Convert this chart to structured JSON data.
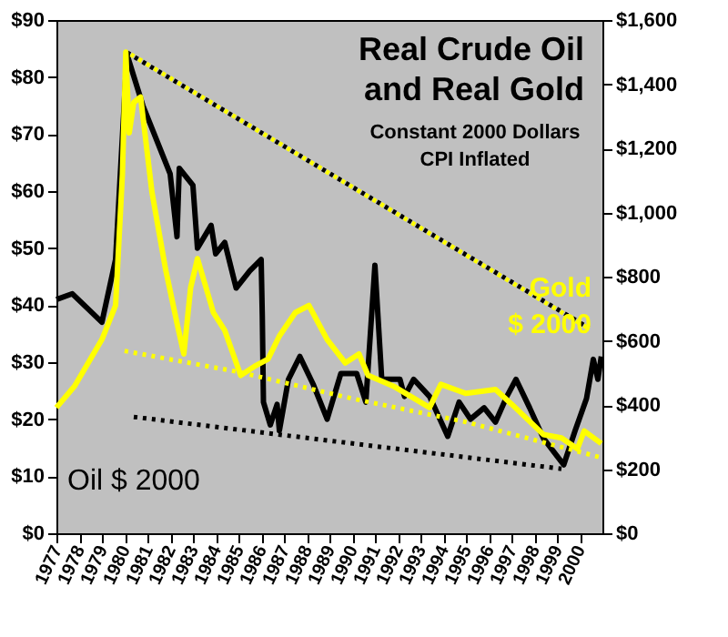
{
  "chart_data": {
    "type": "line",
    "title": "Real Crude Oil and Real Gold",
    "subtitle": "Constant 2000 Dollars CPI Inflated",
    "xlim": [
      1977,
      2001
    ],
    "xticks": [
      1977,
      1978,
      1979,
      1980,
      1981,
      1982,
      1983,
      1984,
      1985,
      1986,
      1987,
      1988,
      1989,
      1990,
      1991,
      1992,
      1993,
      1994,
      1995,
      1996,
      1997,
      1998,
      1999,
      2000
    ],
    "ylim": [
      0,
      90
    ],
    "yticks": [
      {
        "value": 0,
        "label": "$0"
      },
      {
        "value": 10,
        "label": "$10"
      },
      {
        "value": 20,
        "label": "$20"
      },
      {
        "value": 30,
        "label": "$30"
      },
      {
        "value": 40,
        "label": "$40"
      },
      {
        "value": 50,
        "label": "$50"
      },
      {
        "value": 60,
        "label": "$60"
      },
      {
        "value": 70,
        "label": "$70"
      },
      {
        "value": 80,
        "label": "$80"
      },
      {
        "value": 90,
        "label": "$90"
      }
    ],
    "y2lim": [
      0,
      1600
    ],
    "y2ticks": [
      {
        "value": 0,
        "label": "$0"
      },
      {
        "value": 200,
        "label": "$200"
      },
      {
        "value": 400,
        "label": "$400"
      },
      {
        "value": 600,
        "label": "$600"
      },
      {
        "value": 800,
        "label": "$800"
      },
      {
        "value": 1000,
        "label": "$1,000"
      },
      {
        "value": 1200,
        "label": "$1,200"
      },
      {
        "value": 1400,
        "label": "$1,400"
      },
      {
        "value": 1600,
        "label": "$1,600"
      }
    ],
    "marker": "none",
    "series": [
      {
        "name": "Oil $ 2000",
        "color": "#000000",
        "line_style": "solid",
        "x": [
          1977.0,
          1977.7,
          1979.0,
          1979.6,
          1980.1,
          1980.8,
          1981.5,
          1982.0,
          1982.3,
          1982.4,
          1983.0,
          1983.2,
          1983.8,
          1984.0,
          1984.4,
          1984.9,
          1985.5,
          1986.0,
          1986.05,
          1986.1,
          1986.4,
          1986.7,
          1986.8,
          1987.2,
          1987.7,
          1988.3,
          1988.9,
          1989.5,
          1990.2,
          1990.6,
          1991.0,
          1991.3,
          1992.1,
          1992.3,
          1992.7,
          1993.4,
          1994.2,
          1994.7,
          1995.2,
          1995.8,
          1996.3,
          1996.8,
          1997.2,
          1997.8,
          1998.4,
          1999.3,
          1999.8,
          2000.3,
          2000.6,
          2000.8,
          2000.95
        ],
        "values": [
          41,
          42,
          37,
          48,
          84,
          75,
          68,
          63,
          52,
          64,
          61,
          50,
          54,
          49,
          51,
          43,
          46,
          48,
          38,
          23,
          19,
          22.6,
          18,
          27,
          31,
          26,
          20,
          28,
          28,
          23,
          47,
          27,
          27,
          24,
          27,
          24,
          17,
          23,
          20,
          22,
          19.5,
          24,
          27,
          22,
          16.7,
          12,
          18,
          23.6,
          30.5,
          27,
          31
        ]
      },
      {
        "name": "Gold $ 2000",
        "color": "#ffff00",
        "axis": "y2",
        "line_style": "solid",
        "x": [
          1977.0,
          1977.8,
          1979.0,
          1979.6,
          1979.9,
          1980.05,
          1980.2,
          1980.4,
          1980.7,
          1981.2,
          1981.8,
          1982.3,
          1982.6,
          1982.9,
          1983.2,
          1983.9,
          1984.4,
          1985.1,
          1985.7,
          1986.3,
          1986.8,
          1987.5,
          1988.1,
          1988.9,
          1989.7,
          1990.3,
          1990.7,
          1991.8,
          1993.4,
          1993.9,
          1995.0,
          1996.3,
          1997.0,
          1998.4,
          1999.2,
          1999.9,
          2000.2,
          2000.95
        ],
        "values": [
          392,
          459,
          604,
          710,
          1119,
          1500,
          1248,
          1343,
          1360,
          1063,
          822,
          655,
          559,
          766,
          856,
          688,
          632,
          492,
          520,
          543,
          615,
          688,
          710,
          604,
          531,
          559,
          492,
          459,
          392,
          464,
          436,
          448,
          403,
          308,
          297,
          263,
          319,
          280
        ]
      },
      {
        "color": "#000000",
        "type": "line",
        "line_style": "dotted",
        "x": [
          1980.1,
          2000.4
        ],
        "values": [
          84.3,
          36
        ]
      },
      {
        "color": "#ffff00",
        "type": "line",
        "axis": "y2",
        "line_style": "dotted",
        "x": [
          1980.1,
          2000.4
        ],
        "values": [
          1500,
          638
        ]
      },
      {
        "color": "#ffff00",
        "type": "line",
        "axis": "y2",
        "line_style": "dotted",
        "x": [
          1979.8,
          1985.0,
          1990.0,
          1995.0,
          2001.0
        ],
        "values": [
          571,
          503,
          420,
          347,
          235
        ]
      },
      {
        "color": "#000000",
        "type": "line",
        "line_style": "dotted",
        "x": [
          1980.4,
          1999.2
        ],
        "values": [
          20.4,
          11.3
        ]
      }
    ]
  }
}
